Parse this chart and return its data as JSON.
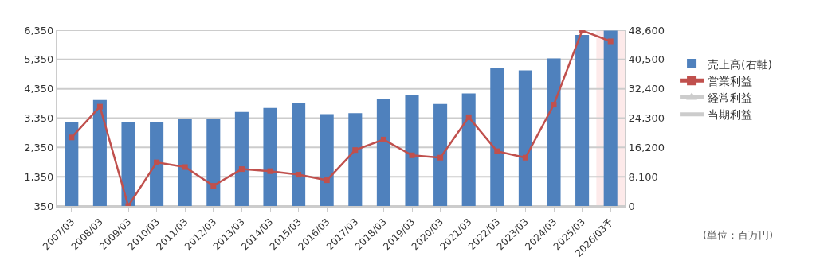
{
  "chart_data": {
    "type": "bar",
    "categories": [
      "2007/03",
      "2008/03",
      "2009/03",
      "2010/03",
      "2011/03",
      "2012/03",
      "2013/03",
      "2014/03",
      "2015/03",
      "2016/03",
      "2017/03",
      "2018/03",
      "2019/03",
      "2020/03",
      "2021/03",
      "2022/03",
      "2023/03",
      "2024/03",
      "2025/03",
      "2026/03予"
    ],
    "series": [
      {
        "name": "売上高(右軸)",
        "axis": "y2",
        "color": "#4f81bd",
        "values": [
          23300,
          29300,
          23300,
          23300,
          24000,
          24000,
          26000,
          27100,
          28400,
          25400,
          25700,
          29600,
          30800,
          28200,
          31100,
          38100,
          37500,
          40800,
          47300,
          48500
        ]
      },
      {
        "name": "営業利益",
        "type": "line",
        "color": "#c0504d",
        "marker": "square",
        "values": [
          2690,
          3740,
          350,
          1840,
          1680,
          1040,
          1610,
          1540,
          1420,
          1230,
          2260,
          2620,
          2080,
          2000,
          3380,
          2220,
          2000,
          3810,
          6340,
          5970
        ]
      },
      {
        "name": "経常利益",
        "type": "line",
        "color": "#cccccc",
        "marker": "triangle",
        "values": [
          null,
          null,
          null,
          null,
          null,
          null,
          null,
          null,
          null,
          null,
          null,
          null,
          null,
          null,
          null,
          null,
          null,
          null,
          null,
          null
        ]
      },
      {
        "name": "当期利益",
        "type": "line",
        "color": "#cccccc",
        "marker": "none",
        "values": [
          null,
          null,
          null,
          null,
          null,
          null,
          null,
          null,
          null,
          null,
          null,
          null,
          null,
          null,
          null,
          null,
          null,
          null,
          null,
          null
        ]
      }
    ],
    "ylim": [
      350,
      6350
    ],
    "yticks": [
      {
        "value": 350,
        "label": "350"
      },
      {
        "value": 1350,
        "label": "1,350"
      },
      {
        "value": 2350,
        "label": "2,350"
      },
      {
        "value": 3350,
        "label": "3,350"
      },
      {
        "value": 4350,
        "label": "4,350"
      },
      {
        "value": 5350,
        "label": "5,350"
      },
      {
        "value": 6350,
        "label": "6,350"
      }
    ],
    "y2lim": [
      0,
      48600
    ],
    "y2ticks": [
      0,
      {
        "value": 8100,
        "label": "8,100"
      },
      {
        "value": 16200,
        "label": "16,200"
      },
      {
        "value": 24300,
        "label": "24,300"
      },
      {
        "value": 32400,
        "label": "32,400"
      },
      {
        "value": 40500,
        "label": "40,500"
      },
      {
        "value": 48600,
        "label": "48,600"
      }
    ],
    "bands": [
      {
        "axis": "x",
        "from": "2026/03予",
        "to": "2026/03予",
        "color": "#fdeaea"
      }
    ],
    "annotations": [
      "(単位：百万円)"
    ],
    "grid": "y",
    "legend": "right"
  }
}
